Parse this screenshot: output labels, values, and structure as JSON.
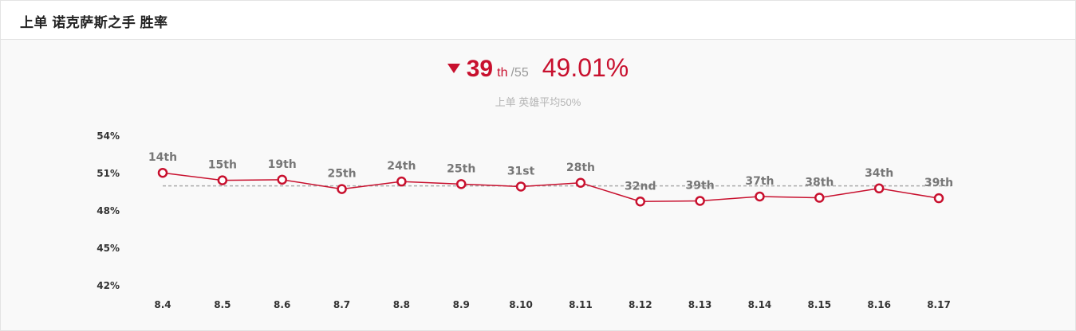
{
  "header": {
    "title": "上单 诺克萨斯之手 胜率"
  },
  "summary": {
    "rank": "39",
    "rank_suffix": "th",
    "rank_total": "/55",
    "winrate": "49.01%",
    "trend": "down",
    "average_note": "上单 英雄平均50%"
  },
  "colors": {
    "accent": "#c8102e",
    "average_line": "#aaaaaa"
  },
  "chart_data": {
    "type": "line",
    "title": "",
    "xlabel": "",
    "ylabel": "",
    "categories": [
      "8.4",
      "8.5",
      "8.6",
      "8.7",
      "8.8",
      "8.9",
      "8.10",
      "8.11",
      "8.12",
      "8.13",
      "8.14",
      "8.15",
      "8.16",
      "8.17"
    ],
    "series": [
      {
        "values": [
          51.05,
          50.45,
          50.5,
          49.75,
          50.35,
          50.15,
          49.95,
          50.25,
          48.75,
          48.8,
          49.15,
          49.05,
          49.8,
          49.01
        ],
        "point_labels": [
          "14th",
          "15th",
          "19th",
          "25th",
          "24th",
          "25th",
          "31st",
          "28th",
          "32nd",
          "39th",
          "37th",
          "38th",
          "34th",
          "39th"
        ]
      }
    ],
    "reference_line": 50,
    "ylim": [
      42,
      54
    ],
    "yticks": [
      54,
      51,
      48,
      45,
      42
    ],
    "ytick_labels": [
      "54%",
      "51%",
      "48%",
      "45%",
      "42%"
    ],
    "grid": false,
    "legend": "none"
  }
}
